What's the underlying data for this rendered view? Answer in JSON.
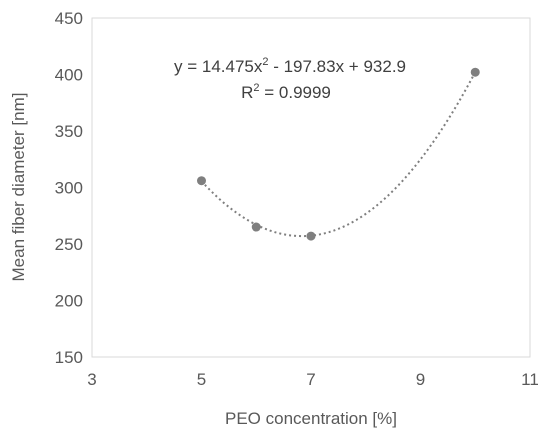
{
  "chart_data": {
    "type": "scatter",
    "xlabel": "PEO concentration  [%]",
    "ylabel": "Mean fiber diameter [nm]",
    "xlim": [
      3,
      11
    ],
    "ylim": [
      150,
      450
    ],
    "x_ticks": [
      3,
      5,
      7,
      9,
      11
    ],
    "y_ticks": [
      150,
      200,
      250,
      300,
      350,
      400,
      450
    ],
    "x_tick_labels": [
      "3",
      "5",
      "7",
      "9",
      "11"
    ],
    "y_tick_labels": [
      "150",
      "200",
      "250",
      "300",
      "350",
      "400",
      "450"
    ],
    "grid": false,
    "series": [
      {
        "x": [
          5,
          6,
          7,
          10
        ],
        "y": [
          306,
          265,
          257,
          402
        ],
        "color": "#7f7f7f"
      }
    ],
    "trendline": {
      "type": "polynomial",
      "order": 2,
      "coefficients": [
        14.475,
        -197.83,
        932.9
      ],
      "x_range": [
        5,
        10
      ],
      "style": "dotted",
      "color": "#7f7f7f",
      "equation_prefix": "y = 14.475x",
      "equation_suffix": " - 197.83x + 932.9",
      "r2_prefix": "R",
      "r2_suffix": " = 0.9999",
      "superscript": "2"
    }
  }
}
